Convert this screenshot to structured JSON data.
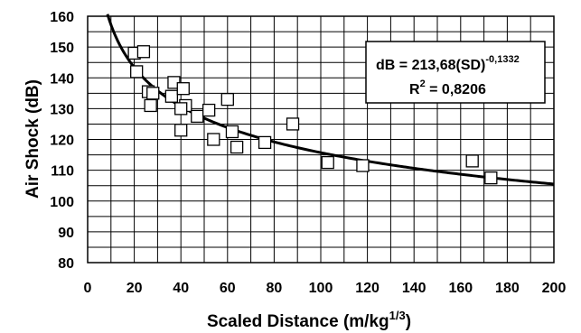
{
  "chart_data": {
    "type": "scatter",
    "title": "",
    "xlabel": "Scaled Distance (m/kg",
    "xlabel_sup": "1/3",
    "xlabel_close": ")",
    "ylabel": "Air Shock (dB)",
    "xlim": [
      0,
      200
    ],
    "ylim": [
      80,
      160
    ],
    "x_ticks": [
      0,
      20,
      40,
      60,
      80,
      100,
      120,
      140,
      160,
      180,
      200
    ],
    "y_ticks": [
      80,
      90,
      100,
      110,
      120,
      130,
      140,
      150,
      160
    ],
    "x_minor_step": 10,
    "y_minor_step": 5,
    "grid": true,
    "points": [
      {
        "x": 20,
        "y": 148
      },
      {
        "x": 24,
        "y": 148.5
      },
      {
        "x": 21,
        "y": 142
      },
      {
        "x": 26,
        "y": 135.5
      },
      {
        "x": 28,
        "y": 135
      },
      {
        "x": 27,
        "y": 131
      },
      {
        "x": 37,
        "y": 138.5
      },
      {
        "x": 36,
        "y": 134
      },
      {
        "x": 41,
        "y": 136.5
      },
      {
        "x": 42,
        "y": 131
      },
      {
        "x": 40,
        "y": 130
      },
      {
        "x": 40,
        "y": 123
      },
      {
        "x": 47,
        "y": 127.5
      },
      {
        "x": 52,
        "y": 129.5
      },
      {
        "x": 54,
        "y": 120
      },
      {
        "x": 60,
        "y": 133
      },
      {
        "x": 62,
        "y": 122.5
      },
      {
        "x": 64,
        "y": 117.5
      },
      {
        "x": 76,
        "y": 119
      },
      {
        "x": 88,
        "y": 125
      },
      {
        "x": 103,
        "y": 112.5
      },
      {
        "x": 118,
        "y": 111.5
      },
      {
        "x": 165,
        "y": 113
      },
      {
        "x": 173,
        "y": 107.5
      }
    ],
    "fit": {
      "type": "power",
      "a": 213.68,
      "b": -0.1332,
      "x_start": 8.5,
      "x_end": 200
    },
    "legend": {
      "equation_main": "dB = 213,68(SD)",
      "equation_exp": "-0,1332",
      "r2_main": "R",
      "r2_sup": "2",
      "r2_value": " = 0,8206",
      "position": "top-right"
    }
  }
}
